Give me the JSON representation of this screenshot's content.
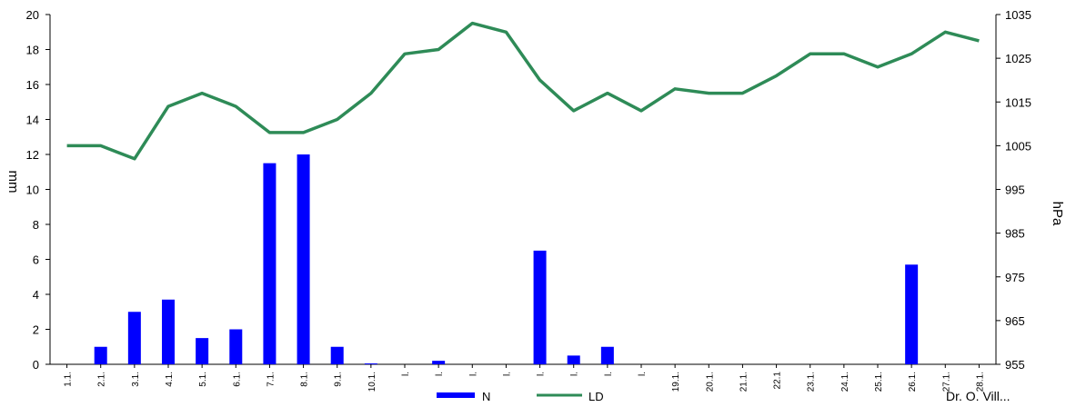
{
  "chart_data": {
    "type": "bar+line",
    "categories": [
      "1.1.",
      "2.1.",
      "3.1.",
      "4.1.",
      "5.1.",
      "6.1.",
      "7.1.",
      "8.1.",
      "9.1.",
      "10.1.",
      "l.",
      "l.",
      "l.",
      "l.",
      "l.",
      "l.",
      "l.",
      "l.",
      "19.1.",
      "20.1.",
      "21.1.",
      "22.1",
      "23.1.",
      "24.1.",
      "25.1.",
      "26.1.",
      "27.1.",
      "28.1."
    ],
    "series": [
      {
        "name": "N",
        "type": "bar",
        "axis": "left",
        "color": "#0000ff",
        "values": [
          0,
          1,
          3,
          3.7,
          1.5,
          2,
          11.5,
          12,
          1,
          0.05,
          0,
          0.2,
          0,
          0,
          6.5,
          0.5,
          1,
          0,
          0,
          0,
          0,
          0,
          0,
          0,
          0,
          5.7,
          0,
          0
        ]
      },
      {
        "name": "LD",
        "type": "line",
        "axis": "right",
        "color": "#2e8b57",
        "values": [
          1005,
          1005,
          1002,
          1014,
          1017,
          1014,
          1008,
          1008,
          1011,
          1017,
          1026,
          1027,
          1033,
          1031,
          1020,
          1013,
          1017,
          1013,
          1018,
          1017,
          1017,
          1021,
          1026,
          1026,
          1023,
          1026,
          1031,
          1029
        ]
      }
    ],
    "y_left": {
      "label": "mm",
      "ylim": [
        0,
        20
      ],
      "ticks": [
        0,
        2,
        4,
        6,
        8,
        10,
        12,
        14,
        16,
        18,
        20
      ]
    },
    "y_right": {
      "label": "hPa",
      "ylim": [
        955,
        1035
      ],
      "ticks": [
        955,
        965,
        975,
        985,
        995,
        1005,
        1015,
        1025,
        1035
      ]
    },
    "legend": {
      "placement": "bottom"
    },
    "grid": false,
    "credit": "Dr. O. Vill..."
  }
}
